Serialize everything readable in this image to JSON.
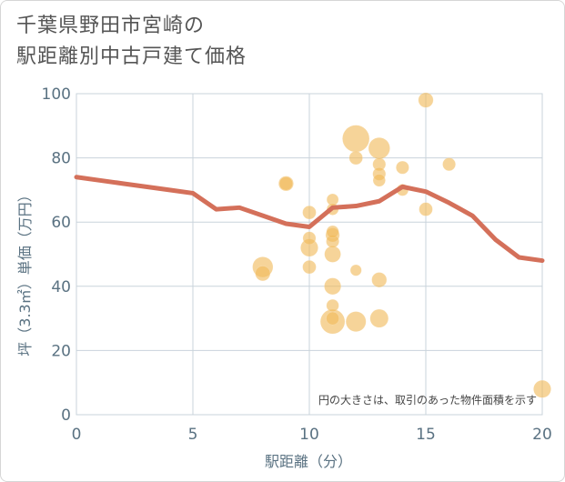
{
  "title_line1": "千葉県野田市宮崎の",
  "title_line2": "駅距離別中古戸建て価格",
  "chart_data": {
    "type": "scatter",
    "xlabel": "駅距離（分）",
    "ylabel": "坪（3.3㎡）単価（万円）",
    "xlim": [
      0,
      20
    ],
    "ylim": [
      0,
      100
    ],
    "xticks": [
      0,
      5,
      10,
      15,
      20
    ],
    "yticks": [
      0,
      20,
      40,
      60,
      80,
      100
    ],
    "grid": true,
    "note": "円の大きさは、取引のあった物件面積を示す",
    "colors": {
      "bubble": "#f1b95a",
      "line": "#d4705a",
      "grid": "#c9d3db",
      "axis": "#5a7282"
    },
    "trend_line": {
      "x": [
        0,
        1,
        2,
        3,
        4,
        5,
        6,
        7,
        8,
        9,
        10,
        11,
        12,
        13,
        14,
        15,
        16,
        17,
        18,
        19,
        20
      ],
      "y": [
        74,
        73,
        72,
        71,
        70,
        69,
        64,
        64.5,
        62,
        59.5,
        58.5,
        64.5,
        65,
        66.5,
        71,
        69.5,
        66,
        62,
        54.5,
        49,
        48
      ]
    },
    "points": [
      {
        "x": 8,
        "y": 46,
        "size": 3
      },
      {
        "x": 8,
        "y": 44,
        "size": 1.6
      },
      {
        "x": 9,
        "y": 72,
        "size": 1.6
      },
      {
        "x": 9,
        "y": 72,
        "size": 1.3
      },
      {
        "x": 10,
        "y": 63,
        "size": 1.3
      },
      {
        "x": 10,
        "y": 55,
        "size": 1.2
      },
      {
        "x": 10,
        "y": 52,
        "size": 2.2
      },
      {
        "x": 10,
        "y": 46,
        "size": 1.3
      },
      {
        "x": 11,
        "y": 67,
        "size": 1.0
      },
      {
        "x": 11,
        "y": 64,
        "size": 1.0
      },
      {
        "x": 11,
        "y": 57,
        "size": 1.1
      },
      {
        "x": 11,
        "y": 56,
        "size": 1.4
      },
      {
        "x": 11,
        "y": 54,
        "size": 1.2
      },
      {
        "x": 11,
        "y": 50,
        "size": 1.9
      },
      {
        "x": 11,
        "y": 40,
        "size": 2.0
      },
      {
        "x": 11,
        "y": 34,
        "size": 1.1
      },
      {
        "x": 11,
        "y": 30,
        "size": 1.2
      },
      {
        "x": 11,
        "y": 29,
        "size": 4.3
      },
      {
        "x": 12,
        "y": 86,
        "size": 5.2
      },
      {
        "x": 12,
        "y": 80,
        "size": 1.3
      },
      {
        "x": 12,
        "y": 45,
        "size": 0.9
      },
      {
        "x": 12,
        "y": 29,
        "size": 2.9
      },
      {
        "x": 13,
        "y": 83,
        "size": 3.3
      },
      {
        "x": 13,
        "y": 78,
        "size": 1.2
      },
      {
        "x": 13,
        "y": 75,
        "size": 1.2
      },
      {
        "x": 13,
        "y": 73,
        "size": 1.1
      },
      {
        "x": 13,
        "y": 42,
        "size": 1.6
      },
      {
        "x": 13,
        "y": 30,
        "size": 2.4
      },
      {
        "x": 14,
        "y": 77,
        "size": 1.2
      },
      {
        "x": 14,
        "y": 70,
        "size": 1.0
      },
      {
        "x": 15,
        "y": 98,
        "size": 1.6
      },
      {
        "x": 15,
        "y": 64,
        "size": 1.3
      },
      {
        "x": 16,
        "y": 78,
        "size": 1.2
      },
      {
        "x": 20,
        "y": 8,
        "size": 2.2
      }
    ]
  }
}
